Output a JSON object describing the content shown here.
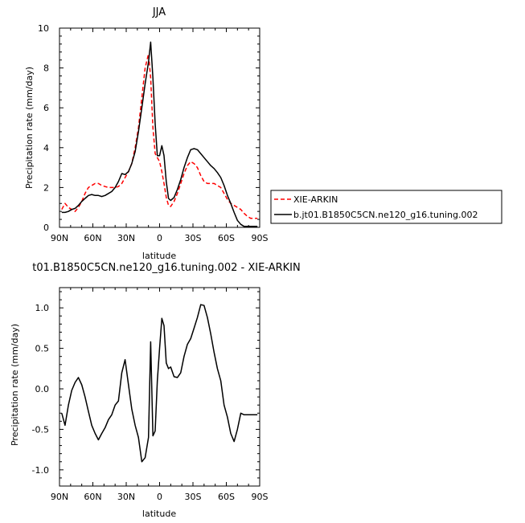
{
  "chart_data": [
    {
      "type": "line",
      "title": "JJA",
      "xlabel": "latitude",
      "ylabel": "Precipitation rate (mm/day)",
      "xlim": [
        90,
        -90
      ],
      "ylim": [
        0,
        10
      ],
      "x_ticks": [
        90,
        60,
        30,
        0,
        -30,
        -60,
        -90
      ],
      "x_tick_labels": [
        "90N",
        "60N",
        "30N",
        "0",
        "30S",
        "60S",
        "90S"
      ],
      "y_ticks": [
        0,
        2,
        4,
        6,
        8,
        10
      ],
      "y_tick_labels": [
        "0",
        "2",
        "4",
        "6",
        "8",
        "10"
      ],
      "legend_position": "right",
      "series": [
        {
          "name": "XIE-ARKIN",
          "color": "#ff0000",
          "dash": "dashed",
          "x": [
            88,
            85,
            82,
            79,
            76,
            73,
            70,
            67,
            64,
            61,
            58,
            55,
            52,
            49,
            46,
            43,
            40,
            37,
            34,
            31,
            28,
            25,
            22,
            19,
            16,
            13,
            10,
            8,
            6,
            4,
            2,
            0,
            -2,
            -4,
            -6,
            -8,
            -10,
            -13,
            -16,
            -19,
            -22,
            -25,
            -28,
            -31,
            -34,
            -37,
            -40,
            -43,
            -46,
            -49,
            -52,
            -55,
            -58,
            -61,
            -64,
            -67,
            -70,
            -73,
            -76,
            -79,
            -82,
            -85,
            -88
          ],
          "y": [
            0.9,
            1.2,
            1.0,
            0.9,
            0.8,
            1.0,
            1.3,
            1.7,
            2.0,
            2.1,
            2.2,
            2.2,
            2.1,
            2.05,
            2.0,
            2.0,
            2.0,
            2.05,
            2.2,
            2.5,
            2.8,
            3.2,
            4.0,
            5.0,
            6.5,
            8.0,
            8.7,
            7.5,
            5.0,
            3.7,
            3.5,
            3.3,
            2.8,
            2.2,
            1.5,
            1.1,
            1.05,
            1.3,
            1.7,
            2.2,
            2.7,
            3.1,
            3.3,
            3.2,
            3.0,
            2.6,
            2.3,
            2.2,
            2.2,
            2.2,
            2.1,
            2.0,
            1.7,
            1.4,
            1.2,
            1.1,
            1.0,
            0.9,
            0.7,
            0.55,
            0.45,
            0.45,
            0.45
          ]
        },
        {
          "name": "b.jt01.B1850C5CN.ne120_g16.tuning.002",
          "color": "#000000",
          "dash": "solid",
          "x": [
            88,
            85,
            82,
            79,
            76,
            73,
            70,
            67,
            64,
            61,
            58,
            55,
            52,
            49,
            46,
            43,
            40,
            37,
            34,
            31,
            28,
            25,
            22,
            19,
            16,
            13,
            10,
            8,
            6,
            4,
            2,
            0,
            -2,
            -4,
            -6,
            -8,
            -10,
            -13,
            -16,
            -19,
            -22,
            -25,
            -28,
            -31,
            -34,
            -37,
            -40,
            -43,
            -46,
            -49,
            -52,
            -55,
            -58,
            -61,
            -64,
            -67,
            -70,
            -73,
            -76,
            -79,
            -82,
            -85,
            -88
          ],
          "y": [
            0.75,
            0.75,
            0.8,
            0.9,
            0.95,
            1.1,
            1.3,
            1.45,
            1.6,
            1.65,
            1.6,
            1.6,
            1.55,
            1.6,
            1.7,
            1.8,
            2.0,
            2.3,
            2.7,
            2.65,
            2.8,
            3.2,
            3.8,
            4.8,
            6.0,
            7.2,
            8.3,
            9.3,
            7.5,
            5.2,
            3.6,
            3.6,
            4.1,
            3.6,
            2.3,
            1.45,
            1.35,
            1.5,
            1.9,
            2.4,
            3.0,
            3.5,
            3.9,
            3.95,
            3.9,
            3.7,
            3.5,
            3.3,
            3.1,
            2.95,
            2.75,
            2.5,
            2.1,
            1.6,
            1.2,
            0.75,
            0.35,
            0.15,
            0.05,
            0.05,
            0.05,
            0.05,
            0.05
          ]
        }
      ]
    },
    {
      "type": "line",
      "title": "t01.B1850C5CN.ne120_g16.tuning.002 - XIE-ARKIN",
      "xlabel": "latitude",
      "ylabel": "Precipitation rate (mm/day)",
      "xlim": [
        90,
        -90
      ],
      "ylim": [
        -1.2,
        1.25
      ],
      "x_ticks": [
        90,
        60,
        30,
        0,
        -30,
        -60,
        -90
      ],
      "x_tick_labels": [
        "90N",
        "60N",
        "30N",
        "0",
        "30S",
        "60S",
        "90S"
      ],
      "y_ticks": [
        -1.0,
        -0.5,
        0.0,
        0.5,
        1.0
      ],
      "y_tick_labels": [
        "-1.0",
        "-0.5",
        "0.0",
        "0.5",
        "1.0"
      ],
      "series": [
        {
          "color": "#000000",
          "dash": "solid",
          "x": [
            88,
            85,
            82,
            79,
            76,
            73,
            70,
            67,
            64,
            61,
            58,
            55,
            52,
            49,
            46,
            43,
            40,
            37,
            34,
            31,
            28,
            25,
            22,
            19,
            16,
            13,
            10,
            8,
            6,
            4,
            2,
            0,
            -2,
            -4,
            -6,
            -8,
            -10,
            -13,
            -16,
            -19,
            -22,
            -25,
            -28,
            -31,
            -34,
            -37,
            -40,
            -43,
            -46,
            -49,
            -52,
            -55,
            -58,
            -61,
            -64,
            -67,
            -70,
            -73,
            -76,
            -79,
            -82,
            -85,
            -88
          ],
          "y": [
            -0.3,
            -0.45,
            -0.2,
            -0.02,
            0.08,
            0.14,
            0.05,
            -0.1,
            -0.28,
            -0.45,
            -0.55,
            -0.63,
            -0.55,
            -0.48,
            -0.38,
            -0.32,
            -0.2,
            -0.15,
            0.2,
            0.36,
            0.05,
            -0.25,
            -0.45,
            -0.6,
            -0.9,
            -0.85,
            -0.6,
            0.58,
            -0.58,
            -0.52,
            0.1,
            0.5,
            0.87,
            0.78,
            0.32,
            0.25,
            0.27,
            0.15,
            0.14,
            0.2,
            0.4,
            0.55,
            0.62,
            0.75,
            0.88,
            1.04,
            1.03,
            0.88,
            0.68,
            0.45,
            0.25,
            0.1,
            -0.2,
            -0.35,
            -0.55,
            -0.65,
            -0.5,
            -0.3,
            -0.32,
            -0.32,
            -0.32,
            -0.32,
            -0.32
          ]
        }
      ]
    }
  ]
}
